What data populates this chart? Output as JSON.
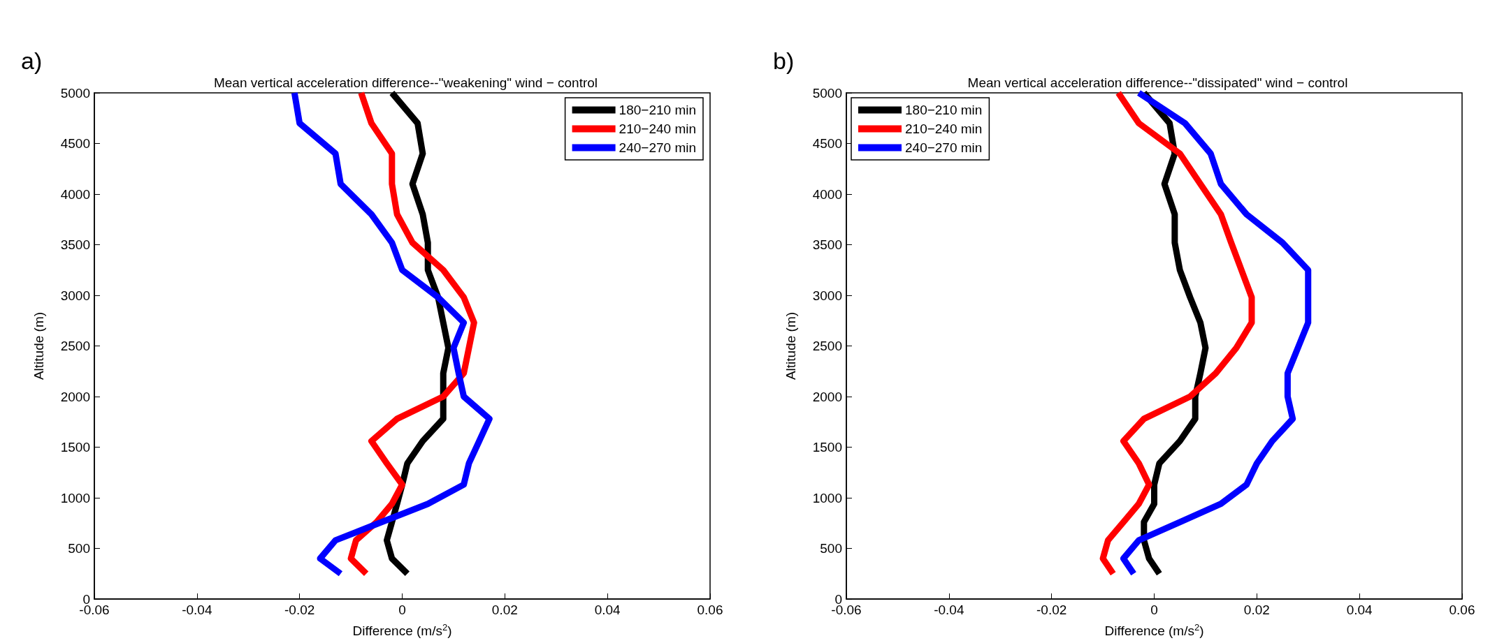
{
  "chart_data": [
    {
      "type": "line",
      "title": "Mean vertical acceleration difference--\"weakening\" wind − control",
      "xlabel": "Difference (m/s$^{2}$)",
      "ylabel": "Altitude (m)",
      "annotations": [
        "a)"
      ],
      "xlim": [
        -0.06,
        0.06
      ],
      "xticks": [
        -0.06,
        -0.04,
        -0.02,
        0,
        0.02,
        0.04,
        0.06
      ],
      "ylim": [
        0,
        5000
      ],
      "yticks": [
        0,
        500,
        1000,
        1500,
        2000,
        2500,
        3000,
        3500,
        4000,
        4500,
        5000
      ],
      "grid": false,
      "legend": "top right",
      "marker": "none",
      "line_style": "solid",
      "series": [
        {
          "name": "180−210 min",
          "color": "#000000",
          "x": [
            -0.002,
            0.003,
            0.004,
            0.002,
            0.004,
            0.005,
            0.005,
            0.007,
            0.008,
            0.009,
            0.008,
            0.008,
            0.008,
            0.004,
            0.001,
            0.0,
            -0.001,
            -0.002,
            -0.003,
            -0.002,
            0.001
          ],
          "values": [
            5000,
            4700,
            4400,
            4100,
            3800,
            3520,
            3250,
            2980,
            2730,
            2480,
            2230,
            2000,
            1780,
            1560,
            1340,
            1130,
            940,
            760,
            580,
            400,
            250
          ]
        },
        {
          "name": "210−240 min",
          "color": "#ff0000",
          "x": [
            -0.008,
            -0.006,
            -0.002,
            -0.002,
            -0.001,
            0.002,
            0.008,
            0.012,
            0.014,
            0.013,
            0.012,
            0.008,
            -0.001,
            -0.006,
            -0.003,
            0.0,
            -0.002,
            -0.005,
            -0.009,
            -0.01,
            -0.007
          ],
          "values": [
            5000,
            4700,
            4400,
            4100,
            3800,
            3520,
            3250,
            2980,
            2730,
            2480,
            2230,
            2000,
            1780,
            1560,
            1340,
            1130,
            940,
            760,
            580,
            400,
            250
          ]
        },
        {
          "name": "240−270 min",
          "color": "#0000ff",
          "x": [
            -0.021,
            -0.02,
            -0.013,
            -0.012,
            -0.006,
            -0.002,
            0.0,
            0.007,
            0.012,
            0.01,
            0.011,
            0.012,
            0.017,
            0.015,
            0.013,
            0.012,
            0.005,
            -0.004,
            -0.013,
            -0.016,
            -0.012
          ],
          "values": [
            5000,
            4700,
            4400,
            4100,
            3800,
            3520,
            3250,
            2980,
            2730,
            2480,
            2230,
            2000,
            1780,
            1560,
            1340,
            1130,
            940,
            760,
            580,
            400,
            250
          ]
        }
      ]
    },
    {
      "type": "line",
      "title": "Mean vertical acceleration difference--\"dissipated\" wind − control",
      "xlabel": "Difference (m/s$^{2}$)",
      "ylabel": "Altitude (m)",
      "annotations": [
        "b)"
      ],
      "xlim": [
        -0.06,
        0.06
      ],
      "xticks": [
        -0.06,
        -0.04,
        -0.02,
        0,
        0.02,
        0.04,
        0.06
      ],
      "ylim": [
        0,
        5000
      ],
      "yticks": [
        0,
        500,
        1000,
        1500,
        2000,
        2500,
        3000,
        3500,
        4000,
        4500,
        5000
      ],
      "grid": false,
      "legend": "top left",
      "marker": "none",
      "line_style": "solid",
      "series": [
        {
          "name": "180−210 min",
          "color": "#000000",
          "x": [
            -0.002,
            0.003,
            0.004,
            0.002,
            0.004,
            0.004,
            0.005,
            0.007,
            0.009,
            0.01,
            0.009,
            0.008,
            0.008,
            0.005,
            0.001,
            0.0,
            0.0,
            -0.002,
            -0.002,
            -0.001,
            0.001
          ],
          "values": [
            5000,
            4700,
            4400,
            4100,
            3800,
            3520,
            3250,
            2980,
            2730,
            2480,
            2230,
            2000,
            1780,
            1560,
            1340,
            1130,
            940,
            760,
            580,
            400,
            250
          ]
        },
        {
          "name": "210−240 min",
          "color": "#ff0000",
          "x": [
            -0.007,
            -0.003,
            0.005,
            0.009,
            0.013,
            0.015,
            0.017,
            0.019,
            0.019,
            0.016,
            0.012,
            0.007,
            -0.002,
            -0.006,
            -0.003,
            -0.001,
            -0.003,
            -0.006,
            -0.009,
            -0.01,
            -0.008
          ],
          "values": [
            5000,
            4700,
            4400,
            4100,
            3800,
            3520,
            3250,
            2980,
            2730,
            2480,
            2230,
            2000,
            1780,
            1560,
            1340,
            1130,
            940,
            760,
            580,
            400,
            250
          ]
        },
        {
          "name": "240−270 min",
          "color": "#0000ff",
          "x": [
            -0.003,
            0.006,
            0.011,
            0.013,
            0.018,
            0.025,
            0.03,
            0.03,
            0.03,
            0.028,
            0.026,
            0.026,
            0.027,
            0.023,
            0.02,
            0.018,
            0.013,
            0.005,
            -0.003,
            -0.006,
            -0.004
          ],
          "values": [
            5000,
            4700,
            4400,
            4100,
            3800,
            3520,
            3250,
            2980,
            2730,
            2480,
            2230,
            2000,
            1780,
            1560,
            1340,
            1130,
            940,
            760,
            580,
            400,
            250
          ]
        }
      ]
    }
  ]
}
